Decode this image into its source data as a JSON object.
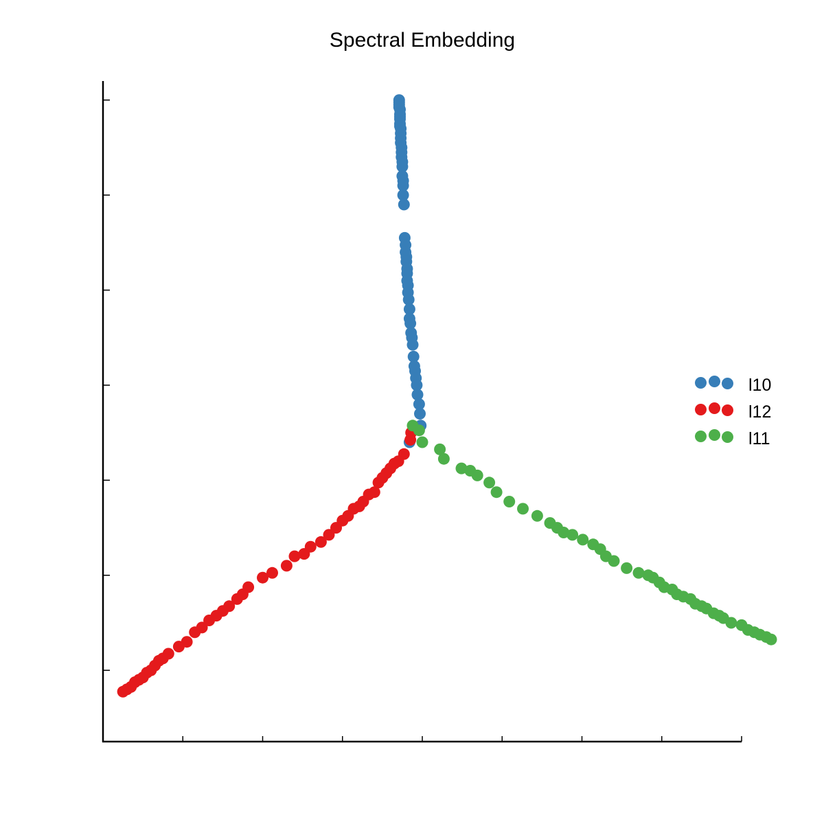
{
  "chart_data": {
    "type": "scatter",
    "title": "Spectral Embedding",
    "xlabel": "",
    "ylabel": "",
    "xlim": [
      -0.4,
      0.4
    ],
    "ylim": [
      -0.75,
      0.64
    ],
    "xticks": [
      -0.3,
      -0.2,
      -0.1,
      0.0,
      0.1,
      0.2,
      0.3,
      0.4
    ],
    "yticks": [
      -0.6,
      -0.4,
      -0.2,
      0.0,
      0.2,
      0.4,
      0.6
    ],
    "tick_labels_visible": false,
    "grid": false,
    "legend_position": "right",
    "series": [
      {
        "name": "l10",
        "color": "#377eb8",
        "x": [
          -0.029,
          -0.029,
          -0.029,
          -0.029,
          -0.028,
          -0.028,
          -0.028,
          -0.028,
          -0.028,
          -0.028,
          -0.027,
          -0.027,
          -0.027,
          -0.027,
          -0.026,
          -0.026,
          -0.026,
          -0.025,
          -0.025,
          -0.025,
          -0.024,
          -0.024,
          -0.024,
          -0.023,
          -0.022,
          -0.021,
          -0.021,
          -0.02,
          -0.02,
          -0.019,
          -0.019,
          -0.019,
          -0.018,
          -0.018,
          -0.017,
          -0.016,
          -0.016,
          -0.015,
          -0.014,
          -0.013,
          -0.012,
          -0.011,
          -0.01,
          -0.009,
          -0.008,
          -0.007,
          -0.006,
          -0.004,
          -0.003,
          -0.002,
          -0.016
        ],
        "y": [
          0.6,
          0.595,
          0.59,
          0.585,
          0.58,
          0.57,
          0.565,
          0.56,
          0.55,
          0.545,
          0.54,
          0.53,
          0.52,
          0.51,
          0.5,
          0.49,
          0.48,
          0.47,
          0.46,
          0.44,
          0.43,
          0.42,
          0.4,
          0.38,
          0.31,
          0.295,
          0.28,
          0.27,
          0.26,
          0.245,
          0.235,
          0.22,
          0.21,
          0.195,
          0.18,
          0.16,
          0.14,
          0.13,
          0.11,
          0.1,
          0.085,
          0.06,
          0.04,
          0.03,
          0.015,
          0.0,
          -0.02,
          -0.04,
          -0.06,
          -0.085,
          -0.12
        ]
      },
      {
        "name": "l12",
        "color": "#e41a1c",
        "x": [
          -0.014,
          -0.015,
          -0.023,
          -0.03,
          -0.035,
          -0.04,
          -0.045,
          -0.05,
          -0.055,
          -0.06,
          -0.067,
          -0.074,
          -0.079,
          -0.086,
          -0.093,
          -0.1,
          -0.108,
          -0.117,
          -0.127,
          -0.14,
          -0.148,
          -0.16,
          -0.17,
          -0.188,
          -0.2,
          -0.218,
          -0.225,
          -0.232,
          -0.242,
          -0.25,
          -0.258,
          -0.267,
          -0.276,
          -0.285,
          -0.295,
          -0.305,
          -0.318,
          -0.325,
          -0.33,
          -0.335,
          -0.34,
          -0.345,
          -0.35,
          -0.355,
          -0.36,
          -0.365,
          -0.37,
          -0.375
        ],
        "y": [
          -0.1,
          -0.115,
          -0.145,
          -0.16,
          -0.165,
          -0.175,
          -0.185,
          -0.195,
          -0.205,
          -0.225,
          -0.23,
          -0.245,
          -0.255,
          -0.26,
          -0.275,
          -0.285,
          -0.3,
          -0.315,
          -0.33,
          -0.34,
          -0.355,
          -0.36,
          -0.38,
          -0.395,
          -0.405,
          -0.425,
          -0.44,
          -0.45,
          -0.465,
          -0.475,
          -0.485,
          -0.495,
          -0.51,
          -0.52,
          -0.54,
          -0.55,
          -0.565,
          -0.575,
          -0.58,
          -0.59,
          -0.6,
          -0.605,
          -0.615,
          -0.62,
          -0.625,
          -0.635,
          -0.64,
          -0.645
        ]
      },
      {
        "name": "l11",
        "color": "#4daf4a",
        "x": [
          -0.012,
          -0.004,
          0.0,
          0.022,
          0.027,
          0.049,
          0.06,
          0.069,
          0.084,
          0.093,
          0.109,
          0.126,
          0.144,
          0.16,
          0.169,
          0.177,
          0.188,
          0.201,
          0.214,
          0.223,
          0.23,
          0.24,
          0.256,
          0.271,
          0.283,
          0.289,
          0.297,
          0.303,
          0.313,
          0.319,
          0.327,
          0.336,
          0.342,
          0.35,
          0.356,
          0.365,
          0.372,
          0.377,
          0.387,
          0.4,
          0.408,
          0.416,
          0.423,
          0.431,
          0.437
        ],
        "y": [
          -0.085,
          -0.095,
          -0.12,
          -0.135,
          -0.155,
          -0.175,
          -0.18,
          -0.19,
          -0.205,
          -0.225,
          -0.245,
          -0.26,
          -0.275,
          -0.29,
          -0.3,
          -0.31,
          -0.315,
          -0.325,
          -0.335,
          -0.345,
          -0.36,
          -0.37,
          -0.385,
          -0.395,
          -0.4,
          -0.405,
          -0.415,
          -0.425,
          -0.43,
          -0.44,
          -0.445,
          -0.45,
          -0.46,
          -0.465,
          -0.47,
          -0.48,
          -0.485,
          -0.49,
          -0.5,
          -0.505,
          -0.515,
          -0.52,
          -0.525,
          -0.53,
          -0.535
        ]
      }
    ]
  }
}
